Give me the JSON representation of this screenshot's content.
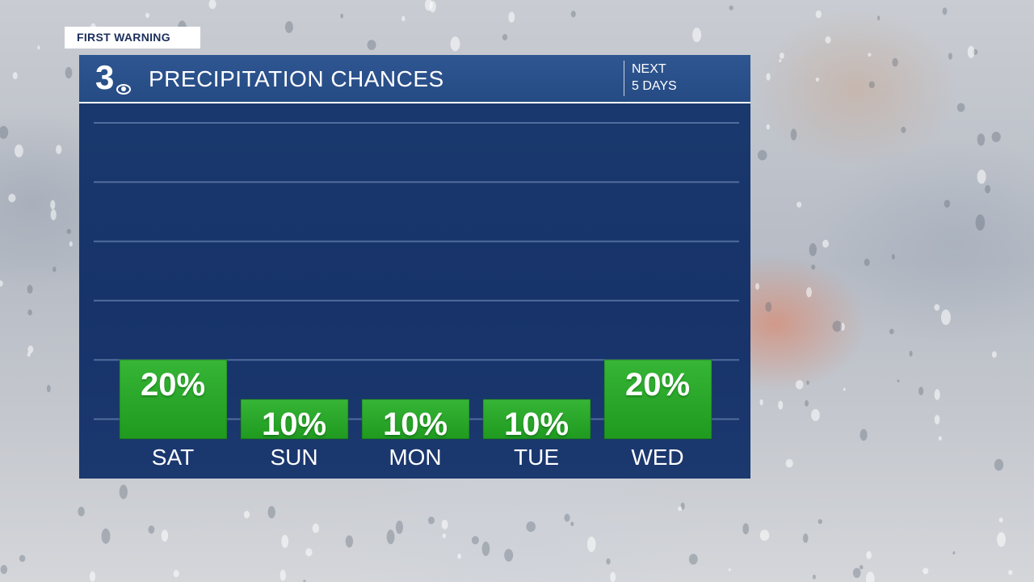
{
  "brand_tag": "FIRST WARNING",
  "header": {
    "logo_text": "3",
    "title": "PRECIPITATION CHANCES",
    "period_line1": "NEXT",
    "period_line2": "5 DAYS"
  },
  "colors": {
    "panel": "#17336a",
    "header": "#2a5089",
    "bar": "#1f9a1f",
    "bar_highlight": "#36b536"
  },
  "chart_data": {
    "type": "bar",
    "categories": [
      "SAT",
      "SUN",
      "MON",
      "TUE",
      "WED"
    ],
    "values": [
      20,
      10,
      10,
      10,
      20
    ],
    "value_labels": [
      "20%",
      "10%",
      "10%",
      "10%",
      "20%"
    ],
    "title": "PRECIPITATION CHANCES",
    "ylim": [
      0,
      100
    ],
    "grid": true
  }
}
